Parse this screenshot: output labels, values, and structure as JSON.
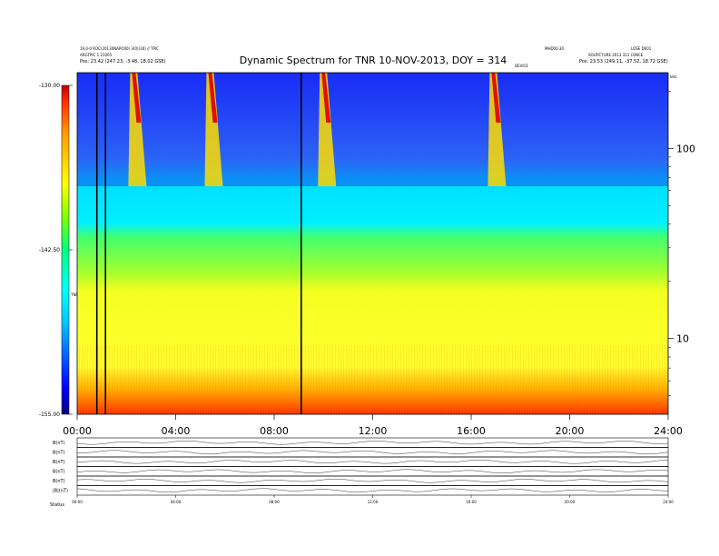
{
  "chart_data": [
    {
      "type": "heatmap",
      "title": "Dynamic Spectrum for TNR 10-NOV-2013, DOY = 314",
      "x_ticks": [
        "00:00",
        "04:00",
        "08:00",
        "12:00",
        "16:00",
        "20:00",
        "24:00"
      ],
      "xlim_hours": [
        0,
        24
      ],
      "y_axis": "log",
      "y_ticks": [
        "100",
        "10"
      ],
      "ylim": [
        4,
        250
      ],
      "y_unit": "kHz",
      "colorbar": {
        "label": "TNR",
        "ticks": [
          "-130.00",
          "-142.50",
          "-155.00"
        ],
        "range": [
          -155.0,
          -130.0
        ],
        "colors": [
          "#000080",
          "#0000ff",
          "#00c8ff",
          "#00ffff",
          "#00ff80",
          "#80ff00",
          "#ffff00",
          "#ffa000",
          "#ff3000",
          "#c00000"
        ]
      },
      "background_bands": [
        {
          "y_frac_top": 0.0,
          "y_frac_bottom": 0.3,
          "color": "#1e3cff"
        },
        {
          "y_frac_top": 0.3,
          "y_frac_bottom": 0.45,
          "color": "#00e8ff"
        },
        {
          "y_frac_top": 0.45,
          "y_frac_bottom": 0.62,
          "color": "#66ff44"
        },
        {
          "y_frac_top": 0.62,
          "y_frac_bottom": 0.88,
          "color": "#ffff33"
        },
        {
          "y_frac_top": 0.88,
          "y_frac_bottom": 1.0,
          "color": "#ff6a00"
        }
      ],
      "bursts_hours": [
        2.3,
        5.4,
        10.0,
        16.9
      ],
      "data_gap_lines_hours": [
        0.8,
        1.15,
        9.1
      ]
    },
    {
      "type": "line",
      "x_ticks": [
        "00:00",
        "04:00",
        "08:00",
        "12:00",
        "16:00",
        "20:00",
        "24:00"
      ],
      "panels": 6,
      "panel_labels": [
        "B(nT)",
        "B(nT)",
        "B(nT)",
        "B(nT)",
        "B(nT)",
        "|B|(nT)"
      ],
      "footer_label": "Status"
    }
  ],
  "header": {
    "left_line1": "19,0-0 ROC(20130NAPO00) 3(0)(30) // TPIC",
    "left_line2": "ARGTPIC 1 21005",
    "left_line3": "Pos:  23.42 (247.23, -3.48, 18.02 GSE)",
    "right_line1": "MHD00.30",
    "right_line2": "SOLPICTURE 2013 311 C0NCE",
    "right_line3": "Pos:  23.53 (249.11, -37.52, 18.72 GSE)",
    "right_top": "LOSE D001",
    "right_mid_label": "DEVICE",
    "axis_unit": "kHz"
  }
}
